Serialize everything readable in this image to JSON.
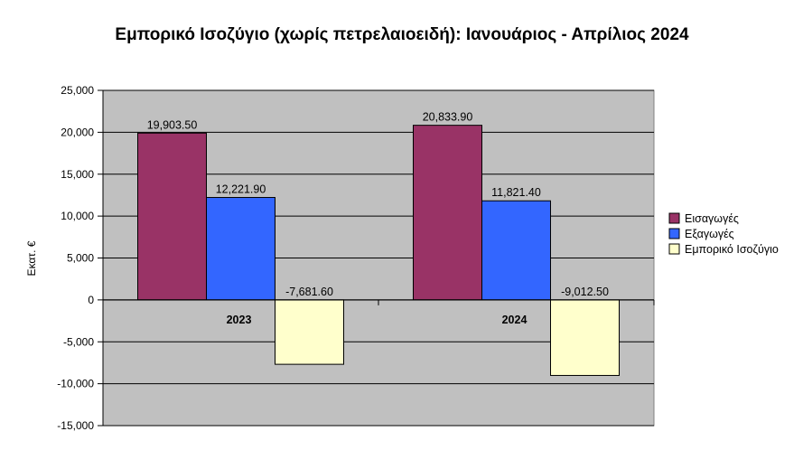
{
  "chart_data": {
    "type": "bar",
    "title": "Εμπορικό Ισοζύγιο (χωρίς πετρελαιοειδή): Ιανουάριος - Απρίλιος 2024",
    "ylabel": "Εκατ. €",
    "xlabel": "",
    "categories": [
      "2023",
      "2024"
    ],
    "series": [
      {
        "name": "Εισαγωγές",
        "values": [
          19903.5,
          20833.9
        ],
        "labels": [
          "19,903.50",
          "20,833.90"
        ],
        "color": "#993366"
      },
      {
        "name": "Εξαγωγές",
        "values": [
          12221.9,
          11821.4
        ],
        "labels": [
          "12,221.90",
          "11,821.40"
        ],
        "color": "#3366ff"
      },
      {
        "name": "Εμπορικό Ισοζύγιο",
        "values": [
          -7681.6,
          -9012.5
        ],
        "labels": [
          "-7,681.60",
          "-9,012.50"
        ],
        "color": "#ffffcc"
      }
    ],
    "ylim": [
      -15000,
      25000
    ],
    "yticks": [
      25000,
      20000,
      15000,
      10000,
      5000,
      0,
      -5000,
      -10000,
      -15000
    ],
    "ytick_labels": [
      "25,000",
      "20,000",
      "15,000",
      "10,000",
      "5,000",
      "0",
      "-5,000",
      "-10,000",
      "-15,000"
    ],
    "grid": true,
    "plot_background": "#c0c0c0",
    "legend_position": "right"
  }
}
